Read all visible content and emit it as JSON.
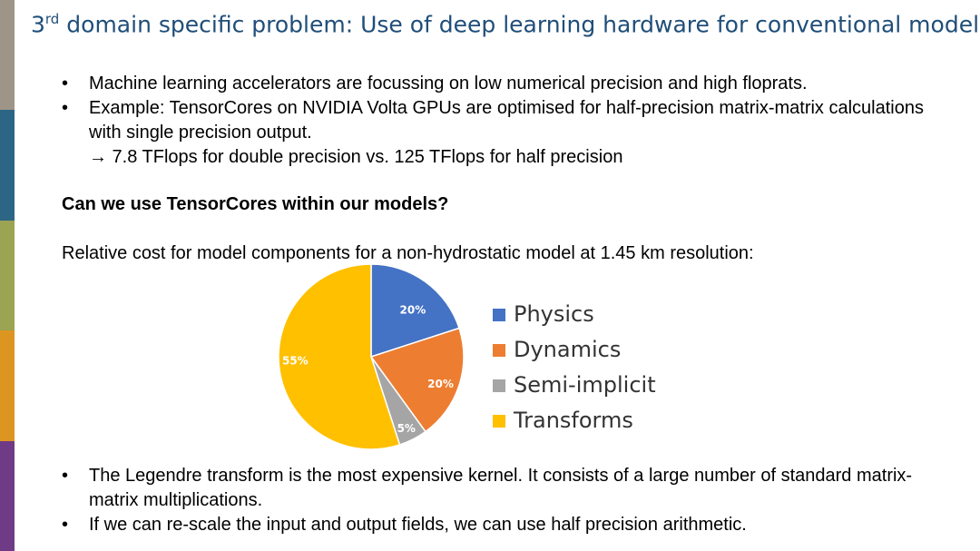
{
  "sidebar_colors": [
    "#9e9588",
    "#2d6584",
    "#9aa452",
    "#dd9522",
    "#6f3b86"
  ],
  "title": {
    "prefix": "3",
    "sup": "rd",
    "rest": " domain specific problem: Use of deep learning hardware for conventional models"
  },
  "bullets_top": [
    {
      "text": "Machine learning accelerators are focussing on low numerical precision and high floprats."
    },
    {
      "text": "Example: TensorCores on NVIDIA Volta GPUs are optimised for half-precision matrix-matrix calculations with single precision output.",
      "sub": "→ 7.8 TFlops for double precision vs. 125 TFlops for half precision"
    }
  ],
  "question": "Can we use TensorCores within our models?",
  "caption": "Relative cost for model components for a non-hydrostatic model at 1.45 km resolution:",
  "chart_data": {
    "type": "pie",
    "series": [
      {
        "name": "Physics",
        "value": 20,
        "label": "20%",
        "color": "#4472c4"
      },
      {
        "name": "Dynamics",
        "value": 20,
        "label": "20%",
        "color": "#ed7d31"
      },
      {
        "name": "Semi-implicit",
        "value": 5,
        "label": "5%",
        "color": "#a5a5a5"
      },
      {
        "name": "Transforms",
        "value": 55,
        "label": "55%",
        "color": "#ffc000"
      }
    ],
    "legend_position": "right"
  },
  "bullets_bottom": [
    {
      "text": "The Legendre transform is the most expensive kernel. It consists of a large number of standard matrix-matrix multiplications."
    },
    {
      "text": "If we can re-scale the input and output fields, we can use half precision arithmetic."
    }
  ]
}
